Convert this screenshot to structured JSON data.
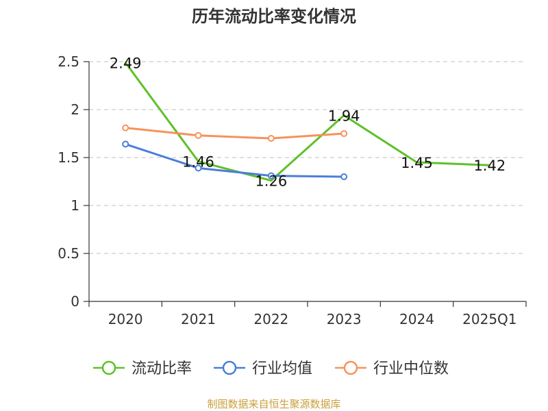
{
  "source_text": "制图数据来自恒生聚源数据库",
  "source_color": "#c8a03c",
  "chart_data": {
    "type": "line",
    "title": "历年流动比率变化情况",
    "xlabel": "",
    "ylabel": "",
    "categories": [
      "2020",
      "2021",
      "2022",
      "2023",
      "2024",
      "2025Q1"
    ],
    "ylim": [
      0,
      2.5
    ],
    "yticks": [
      0,
      0.5,
      1,
      1.5,
      2,
      2.5
    ],
    "ytick_labels": [
      "0",
      "0.5",
      "1",
      "1.5",
      "2",
      "2.5"
    ],
    "grid": true,
    "legend_position": "bottom",
    "series": [
      {
        "name": "流动比率",
        "color": "#5dc128",
        "values": [
          2.49,
          1.46,
          1.26,
          1.94,
          1.45,
          1.42
        ],
        "labels": [
          "2.49",
          "1.46",
          "1.26",
          "1.94",
          "1.45",
          "1.42"
        ],
        "markers": false
      },
      {
        "name": "行业均值",
        "color": "#4a7ed9",
        "values": [
          1.64,
          1.39,
          1.31,
          1.3,
          null,
          null
        ],
        "markers": true
      },
      {
        "name": "行业中位数",
        "color": "#f7925a",
        "values": [
          1.81,
          1.73,
          1.7,
          1.75,
          null,
          null
        ],
        "markers": true
      }
    ]
  }
}
